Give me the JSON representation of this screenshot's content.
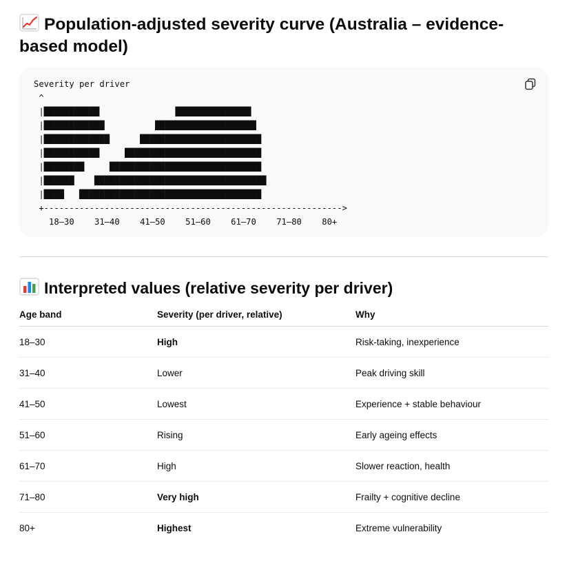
{
  "section1": {
    "title": "Population-adjusted severity curve (Australia – evidence-based model)",
    "emoji_icon": "chart-increasing-icon"
  },
  "codeblock": {
    "ascii": "Severity per driver\n ^\n |███████████               ███████████████\n |████████████          ████████████████████\n |█████████████      ████████████████████████\n |███████████     ███████████████████████████\n |████████     ██████████████████████████████\n |██████    ██████████████████████████████████\n |████   ████████████████████████████████████\n +----------------------------------------------------------->\n   18–30    31–40    41–50    51–60    61–70    71–80    80+",
    "copy_icon": "copy-icon"
  },
  "section2": {
    "title": "Interpreted values (relative severity per driver)",
    "emoji_icon": "bar-chart-icon"
  },
  "table": {
    "headers": [
      "Age band",
      "Severity (per driver, relative)",
      "Why"
    ],
    "rows": [
      [
        "18–30",
        "High",
        "Risk-taking, inexperience"
      ],
      [
        "31–40",
        "Lower",
        "Peak driving skill"
      ],
      [
        "41–50",
        "Lowest",
        "Experience + stable behaviour"
      ],
      [
        "51–60",
        "Rising",
        "Early ageing effects"
      ],
      [
        "61–70",
        "High",
        "Slower reaction, health"
      ],
      [
        "71–80",
        "Very high",
        "Frailty + cognitive decline"
      ],
      [
        "80+",
        "Highest",
        "Extreme vulnerability"
      ]
    ]
  }
}
